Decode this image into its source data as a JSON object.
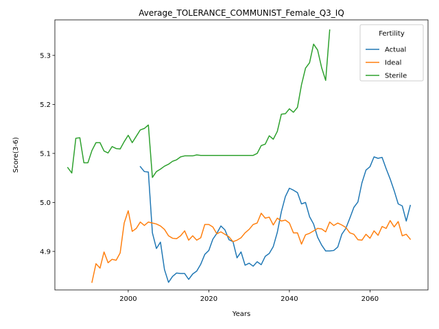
{
  "chart_data": {
    "type": "line",
    "title": "Average_TOLERANCE_COMMUNIST_Female_Q3_IQ",
    "xlabel": "Years",
    "ylabel": "Score(3-6)",
    "xlim": [
      1981.8,
      2074.4
    ],
    "ylim": [
      4.8215,
      5.3725
    ],
    "xticks": [
      2000,
      2020,
      2040,
      2060
    ],
    "yticks": [
      4.9,
      5.0,
      5.1,
      5.2,
      5.3
    ],
    "xtick_labels": [
      "2000",
      "2020",
      "2040",
      "2060"
    ],
    "ytick_labels": [
      "4.9",
      "5.0",
      "5.1",
      "5.2",
      "5.3"
    ],
    "grid": false,
    "legend": {
      "title": "Fertility",
      "placement": "top-right"
    },
    "series": [
      {
        "name": "Actual",
        "color": "#1f77b4",
        "x": [
          2003,
          2004,
          2005,
          2006,
          2007,
          2008,
          2009,
          2010,
          2011,
          2012,
          2013,
          2014,
          2015,
          2016,
          2017,
          2018,
          2019,
          2020,
          2021,
          2022,
          2023,
          2024,
          2025,
          2026,
          2027,
          2028,
          2029,
          2030,
          2031,
          2032,
          2033,
          2034,
          2035,
          2036,
          2037,
          2038,
          2039,
          2040,
          2041,
          2042,
          2043,
          2044,
          2045,
          2046,
          2047,
          2048,
          2049,
          2050,
          2051,
          2052,
          2053,
          2054,
          2055,
          2056,
          2057,
          2058,
          2059,
          2060,
          2061,
          2062,
          2063,
          2064,
          2065,
          2066,
          2067,
          2068,
          2069,
          2070
        ],
        "y": [
          5.073,
          5.063,
          5.062,
          4.938,
          4.906,
          4.919,
          4.863,
          4.837,
          4.849,
          4.856,
          4.855,
          4.855,
          4.843,
          4.854,
          4.86,
          4.874,
          4.894,
          4.902,
          4.925,
          4.937,
          4.952,
          4.944,
          4.924,
          4.92,
          4.887,
          4.899,
          4.872,
          4.876,
          4.87,
          4.879,
          4.873,
          4.89,
          4.896,
          4.91,
          4.939,
          4.981,
          5.012,
          5.029,
          5.025,
          5.02,
          4.997,
          5.0,
          4.971,
          4.956,
          4.929,
          4.913,
          4.901,
          4.901,
          4.902,
          4.909,
          4.935,
          4.947,
          4.968,
          4.99,
          5.001,
          5.04,
          5.066,
          5.073,
          5.093,
          5.09,
          5.092,
          5.069,
          5.048,
          5.024,
          4.997,
          4.993,
          4.962,
          4.994
        ]
      },
      {
        "name": "Ideal",
        "color": "#ff7f0e",
        "x": [
          1991,
          1992,
          1993,
          1994,
          1995,
          1996,
          1997,
          1998,
          1999,
          2000,
          2001,
          2002,
          2003,
          2004,
          2005,
          2006,
          2007,
          2008,
          2009,
          2010,
          2011,
          2012,
          2013,
          2014,
          2015,
          2016,
          2017,
          2018,
          2019,
          2020,
          2021,
          2022,
          2023,
          2024,
          2025,
          2026,
          2027,
          2028,
          2029,
          2030,
          2031,
          2032,
          2033,
          2034,
          2035,
          2036,
          2037,
          2038,
          2039,
          2040,
          2041,
          2042,
          2043,
          2044,
          2045,
          2046,
          2047,
          2048,
          2049,
          2050,
          2051,
          2052,
          2053,
          2054,
          2055,
          2056,
          2057,
          2058,
          2059,
          2060,
          2061,
          2062,
          2063,
          2064,
          2065,
          2066,
          2067,
          2068,
          2069,
          2070
        ],
        "y": [
          4.837,
          4.875,
          4.866,
          4.899,
          4.877,
          4.884,
          4.882,
          4.897,
          4.958,
          4.983,
          4.941,
          4.947,
          4.96,
          4.953,
          4.96,
          4.958,
          4.956,
          4.952,
          4.945,
          4.932,
          4.927,
          4.926,
          4.932,
          4.942,
          4.923,
          4.932,
          4.923,
          4.928,
          4.955,
          4.955,
          4.95,
          4.936,
          4.94,
          4.935,
          4.93,
          4.92,
          4.923,
          4.928,
          4.938,
          4.945,
          4.955,
          4.958,
          4.978,
          4.968,
          4.97,
          4.954,
          4.968,
          4.962,
          4.964,
          4.958,
          4.938,
          4.938,
          4.915,
          4.934,
          4.937,
          4.942,
          4.947,
          4.946,
          4.94,
          4.96,
          4.953,
          4.958,
          4.954,
          4.949,
          4.938,
          4.935,
          4.924,
          4.923,
          4.935,
          4.927,
          4.942,
          4.933,
          4.951,
          4.947,
          4.963,
          4.95,
          4.961,
          4.932,
          4.935,
          4.925
        ]
      },
      {
        "name": "Sterile",
        "color": "#2ca02c",
        "x": [
          1985,
          1986,
          1987,
          1988,
          1989,
          1990,
          1991,
          1992,
          1993,
          1994,
          1995,
          1996,
          1997,
          1998,
          1999,
          2000,
          2001,
          2002,
          2003,
          2004,
          2005,
          2006,
          2007,
          2008,
          2009,
          2010,
          2011,
          2012,
          2013,
          2014,
          2015,
          2016,
          2017,
          2018,
          2019,
          2020,
          2021,
          2022,
          2023,
          2024,
          2025,
          2026,
          2027,
          2028,
          2029,
          2030,
          2031,
          2032,
          2033,
          2034,
          2035,
          2036,
          2037,
          2038,
          2039,
          2040,
          2041,
          2042,
          2043,
          2044,
          2045,
          2046,
          2047,
          2048,
          2049,
          2050
        ],
        "y": [
          5.071,
          5.06,
          5.131,
          5.132,
          5.081,
          5.081,
          5.106,
          5.122,
          5.122,
          5.105,
          5.101,
          5.114,
          5.11,
          5.109,
          5.124,
          5.137,
          5.122,
          5.135,
          5.148,
          5.151,
          5.158,
          5.051,
          5.063,
          5.068,
          5.074,
          5.078,
          5.084,
          5.087,
          5.093,
          5.095,
          5.095,
          5.095,
          5.097,
          5.096,
          5.096,
          5.096,
          5.096,
          5.096,
          5.096,
          5.096,
          5.096,
          5.096,
          5.096,
          5.096,
          5.096,
          5.096,
          5.096,
          5.1,
          5.116,
          5.119,
          5.136,
          5.129,
          5.145,
          5.18,
          5.181,
          5.191,
          5.184,
          5.194,
          5.24,
          5.274,
          5.285,
          5.323,
          5.311,
          5.275,
          5.249,
          5.352
        ]
      }
    ]
  }
}
